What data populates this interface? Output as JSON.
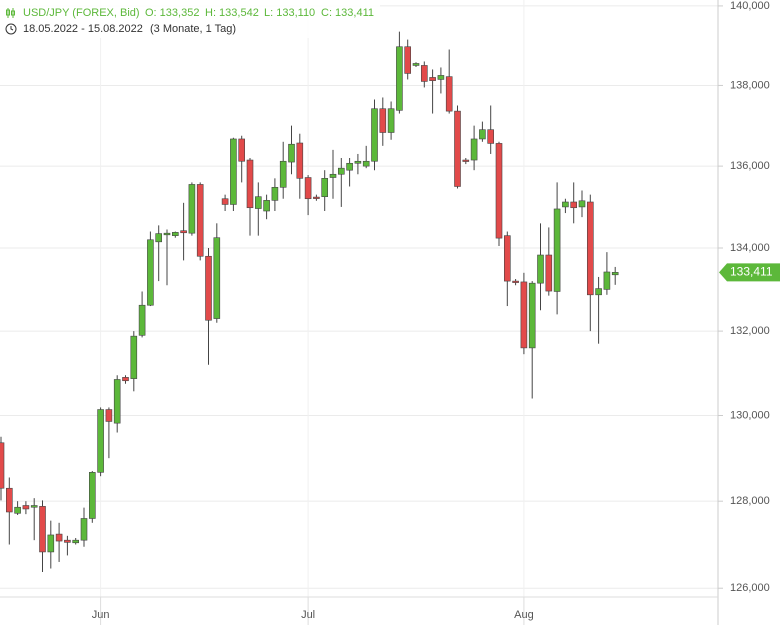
{
  "chart_data": {
    "type": "candlestick",
    "ohlc_labels": [
      "O: 133,352",
      "H: 133,542",
      "L: 133,110",
      "C: 133,411"
    ],
    "date_range": "18.05.2022 - 15.08.2022",
    "period": "(3 Monate, 1 Tag)",
    "categories": [
      null,
      null,
      null,
      null,
      null,
      null,
      null,
      null,
      null,
      null,
      null,
      null,
      "Jun",
      null,
      null,
      null,
      null,
      null,
      null,
      null,
      null,
      null,
      null,
      null,
      null,
      null,
      null,
      null,
      null,
      null,
      null,
      null,
      null,
      null,
      null,
      null,
      null,
      "Jul",
      null,
      null,
      null,
      null,
      null,
      null,
      null,
      null,
      null,
      null,
      null,
      null,
      null,
      null,
      null,
      null,
      null,
      null,
      null,
      null,
      null,
      null,
      null,
      null,
      null,
      "Aug",
      null,
      null,
      null,
      null,
      null,
      null,
      null,
      null,
      null,
      null,
      null
    ],
    "series": [
      {
        "name": "USD/JPY (FOREX, Bid)",
        "up_color": "#5cb83a",
        "down_color": "#e24a4a",
        "open": [
          129.36,
          128.3,
          127.72,
          127.9,
          127.86,
          127.88,
          126.83,
          127.24,
          127.1,
          127.04,
          127.1,
          127.6,
          128.67,
          130.14,
          129.82,
          130.9,
          130.87,
          131.9,
          132.62,
          134.15,
          134.32,
          134.3,
          134.42,
          134.36,
          135.55,
          133.8,
          132.3,
          135.2,
          135.06,
          136.67,
          136.15,
          134.96,
          134.9,
          135.16,
          135.48,
          136.1,
          136.57,
          135.72,
          135.24,
          135.25,
          135.72,
          135.8,
          135.9,
          136.07,
          136.0,
          136.12,
          137.42,
          136.83,
          137.38,
          138.97,
          138.5,
          138.5,
          138.2,
          138.15,
          138.22,
          137.36,
          136.15,
          136.15,
          136.67,
          136.9,
          136.56,
          134.3,
          133.2,
          133.18,
          131.6,
          133.15,
          133.83,
          132.95,
          135.0,
          135.12,
          135.0,
          135.12,
          132.87,
          133.0,
          133.352
        ],
        "high": [
          129.5,
          128.55,
          128.0,
          128.0,
          128.07,
          128.02,
          127.55,
          127.5,
          127.2,
          127.15,
          127.85,
          128.7,
          130.19,
          130.19,
          130.95,
          130.95,
          132.0,
          132.95,
          134.4,
          134.55,
          134.45,
          134.4,
          135.1,
          135.6,
          135.6,
          134.0,
          134.6,
          135.3,
          136.7,
          136.75,
          136.2,
          135.6,
          135.3,
          135.7,
          136.6,
          137.0,
          136.8,
          135.78,
          135.3,
          135.9,
          136.4,
          136.2,
          136.2,
          136.3,
          136.5,
          137.65,
          137.7,
          137.6,
          139.35,
          139.15,
          138.58,
          138.6,
          138.4,
          138.45,
          138.9,
          137.5,
          136.2,
          137.0,
          137.1,
          137.5,
          136.6,
          134.4,
          133.25,
          133.4,
          133.2,
          134.6,
          134.5,
          135.6,
          135.2,
          135.6,
          135.4,
          135.3,
          133.3,
          133.9,
          133.542
        ],
        "low": [
          128.02,
          127.0,
          127.68,
          127.7,
          127.1,
          126.37,
          126.45,
          126.6,
          126.75,
          127.0,
          126.95,
          127.5,
          128.58,
          129.0,
          129.6,
          130.75,
          130.57,
          131.85,
          132.6,
          133.2,
          133.1,
          134.25,
          133.7,
          134.3,
          133.7,
          131.2,
          132.2,
          134.9,
          134.9,
          135.6,
          134.3,
          134.3,
          134.7,
          134.9,
          135.2,
          135.8,
          135.2,
          134.8,
          135.15,
          134.9,
          135.2,
          135.0,
          135.5,
          135.8,
          135.95,
          135.9,
          136.5,
          136.65,
          137.3,
          138.15,
          138.46,
          137.95,
          137.3,
          137.8,
          137.3,
          135.45,
          136.05,
          135.9,
          136.6,
          136.3,
          134.05,
          132.6,
          133.1,
          131.45,
          130.4,
          132.5,
          132.85,
          132.4,
          134.85,
          134.6,
          134.75,
          132.0,
          131.7,
          132.87,
          133.11
        ],
        "close": [
          128.3,
          127.75,
          127.86,
          127.82,
          127.9,
          126.83,
          127.22,
          127.08,
          127.05,
          127.1,
          127.6,
          128.67,
          130.14,
          129.86,
          130.85,
          130.82,
          131.88,
          132.62,
          134.2,
          134.35,
          134.36,
          134.38,
          134.37,
          135.55,
          133.8,
          132.26,
          134.25,
          135.06,
          136.67,
          136.12,
          134.98,
          135.25,
          135.16,
          135.48,
          136.12,
          136.54,
          135.7,
          135.2,
          135.22,
          135.7,
          135.8,
          135.95,
          136.07,
          136.12,
          136.12,
          137.42,
          136.83,
          137.42,
          138.97,
          138.3,
          138.55,
          138.1,
          138.12,
          138.25,
          137.36,
          135.5,
          136.14,
          136.67,
          136.9,
          136.56,
          134.24,
          133.2,
          133.17,
          131.6,
          133.15,
          133.83,
          132.96,
          134.95,
          135.12,
          134.98,
          135.15,
          132.87,
          133.02,
          133.42,
          133.411
        ]
      }
    ],
    "last_price": {
      "value": 133.411,
      "label": "133,411"
    },
    "log_scale": true,
    "grid": true,
    "ylim": [
      125.8,
      140.15
    ],
    "yticks": [
      {
        "value": 126,
        "label": "126,000"
      },
      {
        "value": 128,
        "label": "128,000"
      },
      {
        "value": 130,
        "label": "130,000"
      },
      {
        "value": 132,
        "label": "132,000"
      },
      {
        "value": 134,
        "label": "134,000"
      },
      {
        "value": 136,
        "label": "136,000"
      },
      {
        "value": 138,
        "label": "138,000"
      },
      {
        "value": 140,
        "label": "140,000"
      }
    ]
  }
}
